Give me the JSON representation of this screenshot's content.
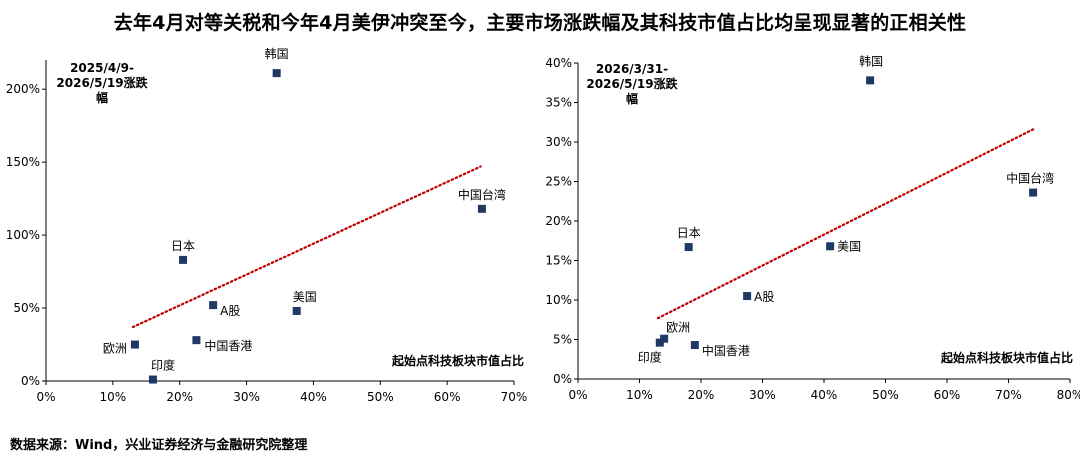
{
  "title": "去年4月对等关税和今年4月美伊冲突至今，主要市场涨跌幅及其科技市值占比均呈现显著的正相关性",
  "source": "数据来源：Wind，兴业证券经济与金融研究院整理",
  "chart_data": [
    {
      "type": "scatter",
      "annotation_lines": [
        "2025/4/9-",
        "2026/5/19涨跌",
        "幅"
      ],
      "xlabel": "起始点科技板块市值占比",
      "xlim": [
        0,
        70
      ],
      "ylim": [
        0,
        220
      ],
      "xticks": [
        0,
        10,
        20,
        30,
        40,
        50,
        60,
        70
      ],
      "xtick_labels": [
        "0%",
        "10%",
        "20%",
        "30%",
        "40%",
        "50%",
        "60%",
        "70%"
      ],
      "yticks": [
        0,
        50,
        100,
        150,
        200
      ],
      "ytick_labels": [
        "0%",
        "50%",
        "100%",
        "150%",
        "200%"
      ],
      "marker_color": "#1F3864",
      "trend_color": "#C00000",
      "trend": [
        [
          13,
          37
        ],
        [
          65,
          147
        ]
      ],
      "points": [
        {
          "label": "韩国",
          "x": 34.5,
          "y": 211
        },
        {
          "label": "中国台湾",
          "x": 65.2,
          "y": 118
        },
        {
          "label": "日本",
          "x": 20.5,
          "y": 83
        },
        {
          "label": "A股",
          "x": 25.0,
          "y": 52
        },
        {
          "label": "美国",
          "x": 37.5,
          "y": 48
        },
        {
          "label": "中国香港",
          "x": 22.5,
          "y": 28
        },
        {
          "label": "欧洲",
          "x": 13.3,
          "y": 25
        },
        {
          "label": "印度",
          "x": 16.0,
          "y": 1
        }
      ]
    },
    {
      "type": "scatter",
      "annotation_lines": [
        "2026/3/31-",
        "2026/5/19涨跌",
        "幅"
      ],
      "xlabel": "起始点科技板块市值占比",
      "xlim": [
        0,
        80
      ],
      "ylim": [
        0,
        40
      ],
      "xticks": [
        0,
        10,
        20,
        30,
        40,
        50,
        60,
        70,
        80
      ],
      "xtick_labels": [
        "0%",
        "10%",
        "20%",
        "30%",
        "40%",
        "50%",
        "60%",
        "70%",
        "80%"
      ],
      "yticks": [
        0,
        5,
        10,
        15,
        20,
        25,
        30,
        35,
        40
      ],
      "ytick_labels": [
        "0%",
        "5%",
        "10%",
        "15%",
        "20%",
        "25%",
        "30%",
        "35%",
        "40%"
      ],
      "marker_color": "#1F3864",
      "trend_color": "#C00000",
      "trend": [
        [
          13,
          7.7
        ],
        [
          74,
          31.6
        ]
      ],
      "points": [
        {
          "label": "韩国",
          "x": 47.5,
          "y": 37.8
        },
        {
          "label": "中国台湾",
          "x": 74.0,
          "y": 23.6
        },
        {
          "label": "日本",
          "x": 18.0,
          "y": 16.7
        },
        {
          "label": "美国",
          "x": 41.0,
          "y": 16.8
        },
        {
          "label": "A股",
          "x": 27.5,
          "y": 10.5
        },
        {
          "label": "欧洲",
          "x": 14.0,
          "y": 5.1
        },
        {
          "label": "印度",
          "x": 13.3,
          "y": 4.6
        },
        {
          "label": "中国香港",
          "x": 19.0,
          "y": 4.3
        }
      ]
    }
  ]
}
